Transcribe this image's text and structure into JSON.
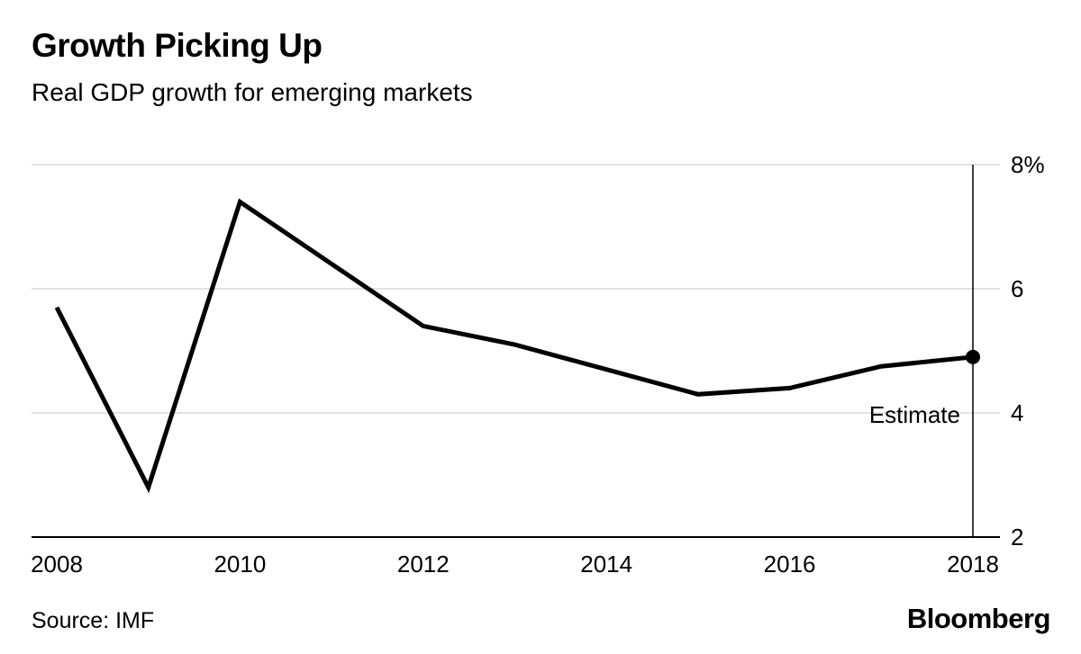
{
  "header": {
    "title": "Growth Picking Up",
    "subtitle": "Real GDP growth for emerging markets"
  },
  "footer": {
    "source": "Source: IMF",
    "brand": "Bloomberg"
  },
  "chart_data": {
    "type": "line",
    "title": "Growth Picking Up",
    "subtitle": "Real GDP growth for emerging markets",
    "x": [
      2008,
      2009,
      2010,
      2011,
      2012,
      2013,
      2014,
      2015,
      2016,
      2017,
      2018
    ],
    "values": [
      5.7,
      2.8,
      7.4,
      6.4,
      5.4,
      5.1,
      4.7,
      4.3,
      4.4,
      4.75,
      4.9
    ],
    "x_ticks": [
      2008,
      2010,
      2012,
      2014,
      2016,
      2018
    ],
    "y_ticks": [
      {
        "value": 8,
        "label": "8%"
      },
      {
        "value": 6,
        "label": "6"
      },
      {
        "value": 4,
        "label": "4"
      },
      {
        "value": 2,
        "label": "2"
      }
    ],
    "xlim": [
      2008,
      2018
    ],
    "ylim": [
      2,
      8
    ],
    "grid": true,
    "legend": "none",
    "annotation": {
      "label": "Estimate",
      "x": 2018
    },
    "source": "Source: IMF",
    "brand": "Bloomberg",
    "line_color": "#000000",
    "grid_color": "#d9d9d9",
    "axis_color": "#000000",
    "background": "#ffffff"
  }
}
